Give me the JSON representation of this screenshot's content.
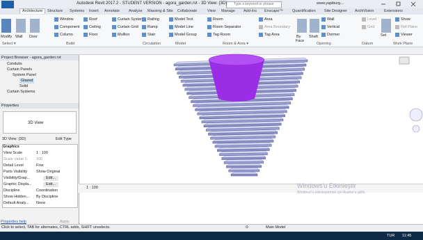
{
  "title_bar": {
    "title": "Autodesk Revit 2017.2 - STUDENT VERSION -   agora_garden.rvt - 3D View: {3D}",
    "search": "Type a keyword or phrase",
    "user": "www.yapiburg..."
  },
  "ribbon": {
    "tabs": [
      "Architecture",
      "Structure",
      "Systems",
      "Insert",
      "Annotate",
      "Analyze",
      "Massing & Site",
      "Collaborate",
      "View",
      "Manage",
      "Add-Ins",
      "Enscape™",
      "Quantification",
      "Site Designer",
      "ArchiVision",
      "Extensions"
    ],
    "buttons": [
      "Modify",
      "Wall",
      "Door",
      "Window",
      "Component",
      "Column",
      "Roof",
      "Ceiling",
      "Floor",
      "Curtain System",
      "Curtain Grid",
      "Mullion",
      "Railing",
      "Ramp",
      "Stair",
      "Model Text",
      "Model Line",
      "Model Group",
      "Room",
      "Room Separator",
      "Tag Room",
      "Area",
      "Area Boundary",
      "Tag Area",
      "By",
      "Face",
      "Shaft",
      "Wall",
      "Vertical",
      "Dormer",
      "Level",
      "Grid",
      "Set",
      "Show",
      "Ref Plane",
      "Viewer"
    ],
    "panels": [
      "Select ▾",
      "Build",
      "Circulation",
      "Model",
      "Room & Area ▾",
      "Opening",
      "Datum",
      "Work Plane"
    ]
  },
  "project_browser": {
    "title": "Project Browser - agora_garden.rvt",
    "items": [
      "Conduits",
      "Curtain Panels",
      "System Panel",
      "Glazed",
      "Solid",
      "Curtain Systems"
    ]
  },
  "properties": {
    "title": "Properties",
    "type": "3D View",
    "instance": "3D View: {3D}",
    "edit_type": "Edit Type",
    "group": "Graphics",
    "rows": [
      [
        "View Scale",
        "1 : 100"
      ],
      [
        "Scale Value  1:",
        "100"
      ],
      [
        "Detail Level",
        "Fine"
      ],
      [
        "Parts Visibility",
        "Show Original"
      ],
      [
        "Visibility/Grap...",
        "Edit..."
      ],
      [
        "Graphic Displa...",
        "Edit..."
      ],
      [
        "Discipline",
        "Coordination"
      ],
      [
        "Show Hidden...",
        "By Discipline"
      ],
      [
        "Default Analy...",
        "None"
      ]
    ],
    "help": "Properties help",
    "apply": "Apply"
  },
  "view_bar": {
    "scale": "1 : 100"
  },
  "watermark": {
    "title": "Windows'u Etkinleştir",
    "text": "Windows'u etkinleştirmek için Ayarlar'a gidin."
  },
  "status_bar": {
    "message": "Click to select, TAB for alternates, CTRL adds, SHIFT unselects.",
    "selection": ":0",
    "model": "Main Model"
  },
  "taskbar": {
    "language": "TUR",
    "time": "11:45"
  }
}
